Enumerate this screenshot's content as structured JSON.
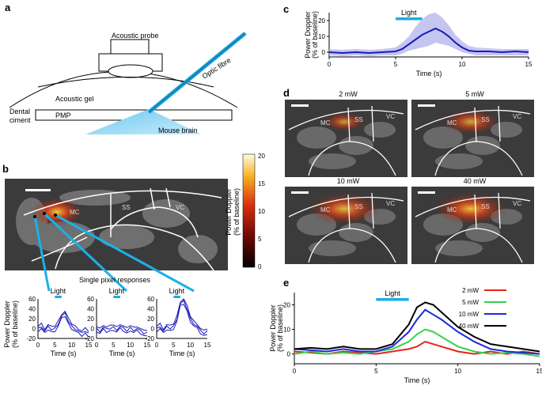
{
  "panels": {
    "a": {
      "label": "a",
      "texts": {
        "probe": "Acoustic probe",
        "optic": "Optic fibre",
        "gel": "Acoustic gel",
        "dental": "Dental",
        "ciment": "ciment",
        "pmp": "PMP",
        "brain": "Mouse brain"
      }
    },
    "b": {
      "label": "b",
      "regions": [
        "MC",
        "SS",
        "VC"
      ],
      "colorbar": {
        "ticks": [
          "20",
          "15",
          "10",
          "5",
          "0"
        ],
        "label1": "Power Doppler",
        "label2": "(% of baseline)"
      },
      "single_pixel_label": "Single pixel responses",
      "mini_ylabel1": "Power Doppler",
      "mini_ylabel2": "(% of baseline)",
      "mini_light": "Light",
      "mini_xlabel": "Time (s)",
      "mini_yticks": [
        "60",
        "40",
        "20",
        "0",
        "-20"
      ],
      "mini_xticks": [
        "0",
        "5",
        "10",
        "15"
      ]
    },
    "c": {
      "label": "c"
    },
    "d": {
      "label": "d",
      "powers": [
        "2 mW",
        "5 mW",
        "10 mW",
        "40 mW"
      ],
      "regions": [
        "MC",
        "SS",
        "VC"
      ]
    },
    "e": {
      "label": "e"
    }
  },
  "chart_data": [
    {
      "id": "c",
      "type": "line",
      "title": "",
      "light_label": "Light",
      "light_interval": [
        5,
        7
      ],
      "xlabel": "Time (s)",
      "ylabel": "Power Doppler (% of baseline)",
      "xlim": [
        0,
        15
      ],
      "ylim": [
        -3,
        25
      ],
      "xticks": [
        "0",
        "5",
        "10",
        "15"
      ],
      "yticks": [
        "20",
        "10",
        "0"
      ],
      "x": [
        0,
        1,
        2,
        3,
        4,
        5,
        5.5,
        6,
        6.5,
        7,
        7.5,
        8,
        8.5,
        9,
        9.5,
        10,
        10.5,
        11,
        12,
        13,
        14,
        15
      ],
      "mean": [
        0,
        -0.5,
        0,
        -0.5,
        0,
        0.5,
        2,
        5,
        8,
        11,
        13,
        15,
        13,
        10,
        6,
        3,
        1,
        0.5,
        0.5,
        0,
        0.5,
        0
      ],
      "upper": [
        2,
        1.5,
        2,
        1.5,
        2,
        3,
        6,
        10,
        16,
        21,
        24,
        25,
        22,
        17,
        11,
        7,
        4,
        3,
        2.5,
        2,
        2,
        2
      ],
      "lower": [
        -2,
        -2.5,
        -2,
        -2.5,
        -2,
        -2,
        -1,
        1,
        2,
        3,
        4,
        6,
        5,
        4,
        2,
        0,
        -1,
        -2,
        -2,
        -2,
        -2,
        -2
      ]
    },
    {
      "id": "e",
      "type": "line",
      "light_label": "Light",
      "light_interval": [
        5,
        7
      ],
      "xlabel": "Time (s)",
      "ylabel": "Power Doppler (% of baseline)",
      "xlim": [
        0,
        15
      ],
      "ylim": [
        -4,
        25
      ],
      "xticks": [
        "0",
        "5",
        "10",
        "15"
      ],
      "yticks": [
        "20",
        "10",
        "0"
      ],
      "x": [
        0,
        1,
        2,
        3,
        4,
        5,
        6,
        7,
        7.5,
        8,
        8.5,
        9,
        10,
        11,
        12,
        13,
        14,
        15
      ],
      "series": [
        {
          "name": "2 mW",
          "color": "#e8221f",
          "values": [
            1,
            0.5,
            0,
            1,
            0.5,
            0,
            1,
            2,
            3,
            5,
            4,
            3,
            1,
            0,
            1,
            0,
            1,
            0
          ]
        },
        {
          "name": "5 mW",
          "color": "#34d24a",
          "values": [
            0,
            1,
            0,
            0.5,
            0,
            1,
            2,
            5,
            8,
            10,
            9,
            7,
            3,
            1,
            0,
            0.5,
            0,
            -1
          ]
        },
        {
          "name": "10 mW",
          "color": "#1c2ad8",
          "values": [
            2,
            1.5,
            1,
            2,
            1,
            1,
            3,
            9,
            14,
            18,
            16,
            14,
            9,
            5,
            2,
            1,
            0.5,
            0
          ]
        },
        {
          "name": "40 mW",
          "color": "#000000",
          "values": [
            2,
            2.5,
            2,
            3,
            2,
            2,
            4,
            12,
            19,
            21,
            20,
            17,
            11,
            7,
            4,
            3,
            2,
            1
          ]
        }
      ]
    }
  ]
}
